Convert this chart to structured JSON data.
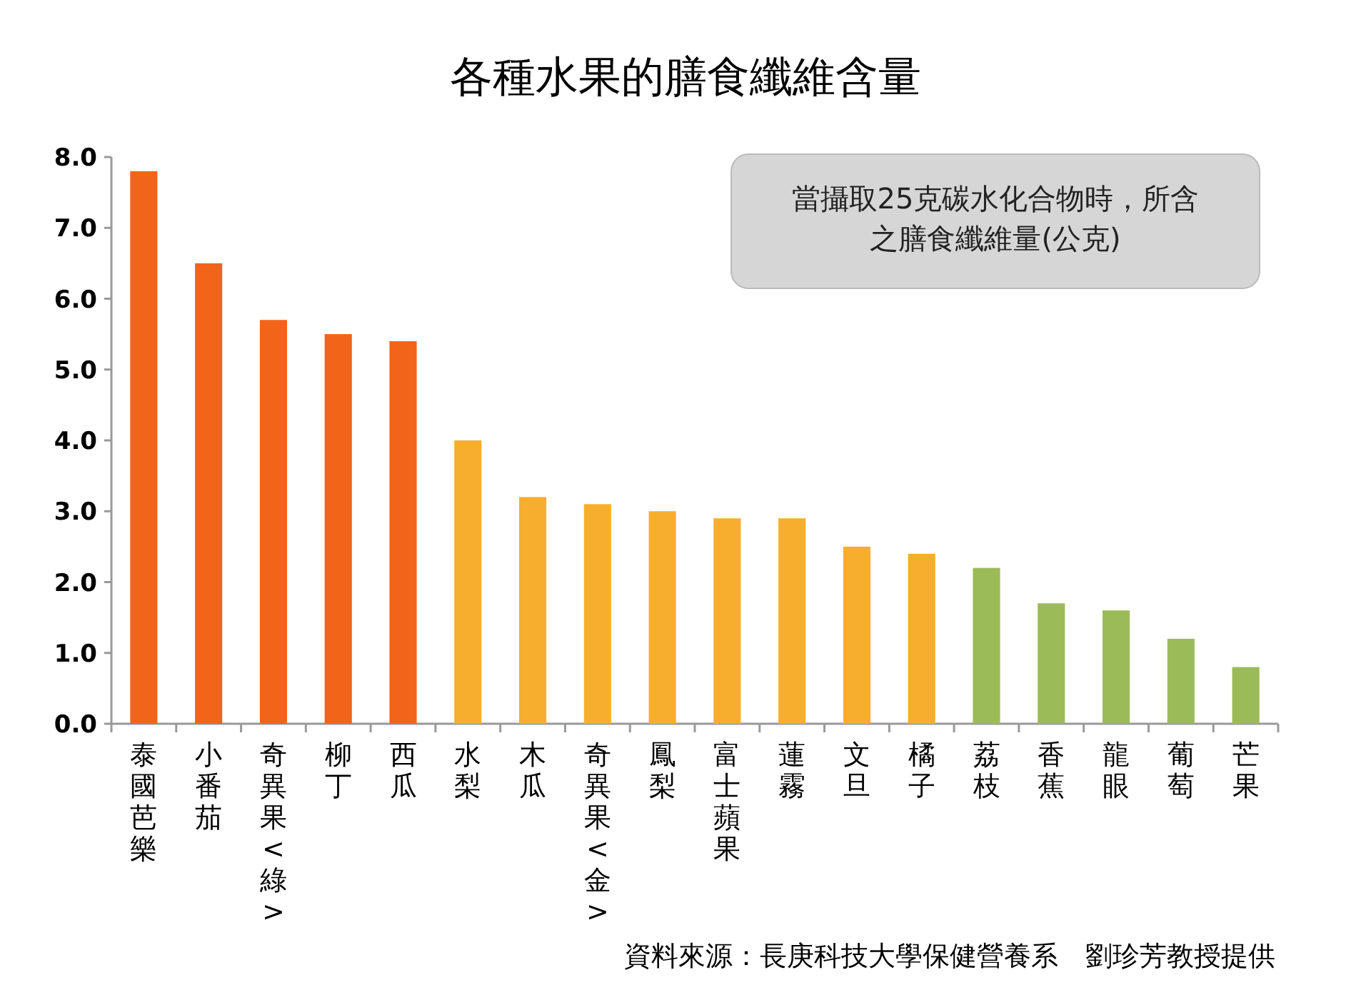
{
  "chart_data": {
    "type": "bar",
    "title": "各種水果的膳食纖維含量",
    "categories": [
      "泰國芭樂",
      "小番茄",
      "奇異果<綠>",
      "柳丁",
      "西瓜",
      "水梨",
      "木瓜",
      "奇異果<金>",
      "鳳梨",
      "富士蘋果",
      "蓮霧",
      "文旦",
      "橘子",
      "荔枝",
      "香蕉",
      "龍眼",
      "葡萄",
      "芒果"
    ],
    "values": [
      7.8,
      6.5,
      5.7,
      5.5,
      5.4,
      4.0,
      3.2,
      3.1,
      3.0,
      2.9,
      2.9,
      2.5,
      2.4,
      2.2,
      1.7,
      1.6,
      1.2,
      0.8
    ],
    "colors": [
      "#f26419",
      "#f26419",
      "#f26419",
      "#f26419",
      "#f26419",
      "#f7ae2c",
      "#f7ae2c",
      "#f7ae2c",
      "#f7ae2c",
      "#f7ae2c",
      "#f7ae2c",
      "#f7ae2c",
      "#f7ae2c",
      "#9bbb59",
      "#9bbb59",
      "#9bbb59",
      "#9bbb59",
      "#9bbb59"
    ],
    "ylim": [
      0,
      8
    ],
    "yticks": [
      {
        "value": 0,
        "label": "0.0"
      },
      {
        "value": 1,
        "label": "1.0"
      },
      {
        "value": 2,
        "label": "2.0"
      },
      {
        "value": 3,
        "label": "3.0"
      },
      {
        "value": 4,
        "label": "4.0"
      },
      {
        "value": 5,
        "label": "5.0"
      },
      {
        "value": 6,
        "label": "6.0"
      },
      {
        "value": 7,
        "label": "7.0"
      },
      {
        "value": 8,
        "label": "8.0"
      }
    ],
    "grid": false,
    "annotations": [
      "當攝取25克碳水化合物時，所含之膳食纖維量(公克)",
      "資料來源：長庚科技大學保健營養系　劉珍芳教授提供"
    ]
  }
}
